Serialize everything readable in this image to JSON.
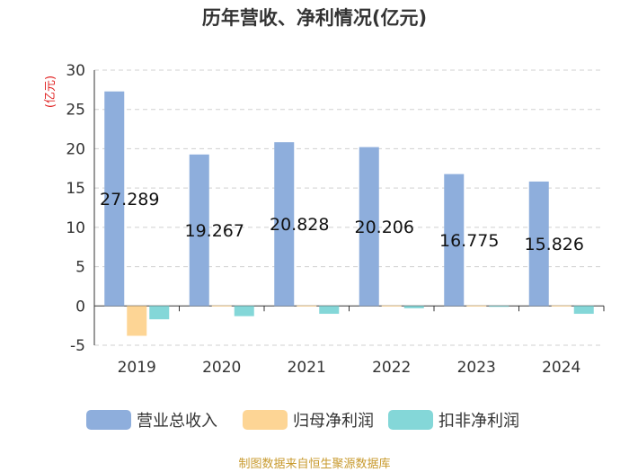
{
  "chart_data": {
    "type": "bar",
    "title": "历年营收、净利情况(亿元)",
    "ylabel": "(亿元)",
    "xlabel": "",
    "categories": [
      "2019",
      "2020",
      "2021",
      "2022",
      "2023",
      "2024"
    ],
    "ylim": [
      -5,
      30
    ],
    "yticks": [
      -5,
      0,
      5,
      10,
      15,
      20,
      25,
      30
    ],
    "grid": true,
    "legend_position": "bottom",
    "series": [
      {
        "name": "营业总收入",
        "color": "#8eaedc",
        "values": [
          27.289,
          19.267,
          20.828,
          20.206,
          16.775,
          15.826
        ],
        "labels": [
          "27.289",
          "19.267",
          "20.828",
          "20.206",
          "16.775",
          "15.826"
        ]
      },
      {
        "name": "归母净利润",
        "color": "#fdd595",
        "values": [
          -3.8,
          0.05,
          0.05,
          0.05,
          0.05,
          0.05
        ]
      },
      {
        "name": "扣非净利润",
        "color": "#84d7d8",
        "values": [
          -1.7,
          -1.3,
          -1.0,
          -0.3,
          -0.05,
          -1.0
        ]
      }
    ],
    "source": "制图数据来自恒生聚源数据库"
  }
}
